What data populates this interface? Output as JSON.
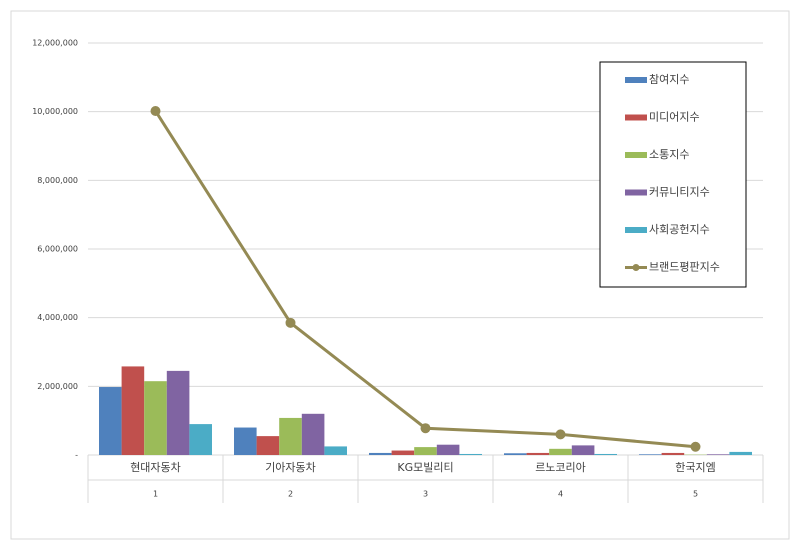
{
  "chart_data": {
    "type": "bar",
    "categories": [
      "현대자동차",
      "기아자동차",
      "KG모빌리티",
      "르노코리아",
      "한국지엠"
    ],
    "ranks": [
      1,
      2,
      3,
      4,
      5
    ],
    "series": [
      {
        "name": "참여지수",
        "color": "#4f81bd",
        "values": [
          1980000,
          800000,
          60000,
          50000,
          20000
        ]
      },
      {
        "name": "미디어지수",
        "color": "#c0504d",
        "values": [
          2580000,
          550000,
          130000,
          60000,
          60000
        ]
      },
      {
        "name": "소통지수",
        "color": "#9bbb59",
        "values": [
          2150000,
          1080000,
          230000,
          180000,
          10000
        ]
      },
      {
        "name": "커뮤니티지수",
        "color": "#8064a2",
        "values": [
          2450000,
          1200000,
          300000,
          280000,
          20000
        ]
      },
      {
        "name": "사회공헌지수",
        "color": "#4bacc6",
        "values": [
          900000,
          250000,
          30000,
          30000,
          90000
        ]
      },
      {
        "name": "브랜드평판지수",
        "color": "#948a54",
        "type": "line",
        "values": [
          10020000,
          3850000,
          780000,
          600000,
          240000
        ]
      }
    ],
    "ylim": [
      0,
      12000000
    ],
    "yticks": [
      {
        "value": 0,
        "label": "-"
      },
      {
        "value": 2000000,
        "label": "2,000,000"
      },
      {
        "value": 4000000,
        "label": "4,000,000"
      },
      {
        "value": 6000000,
        "label": "6,000,000"
      },
      {
        "value": 8000000,
        "label": "8,000,000"
      },
      {
        "value": 10000000,
        "label": "10,000,000"
      },
      {
        "value": 12000000,
        "label": "12,000,000"
      }
    ],
    "grid": true,
    "legend": "top-right"
  }
}
